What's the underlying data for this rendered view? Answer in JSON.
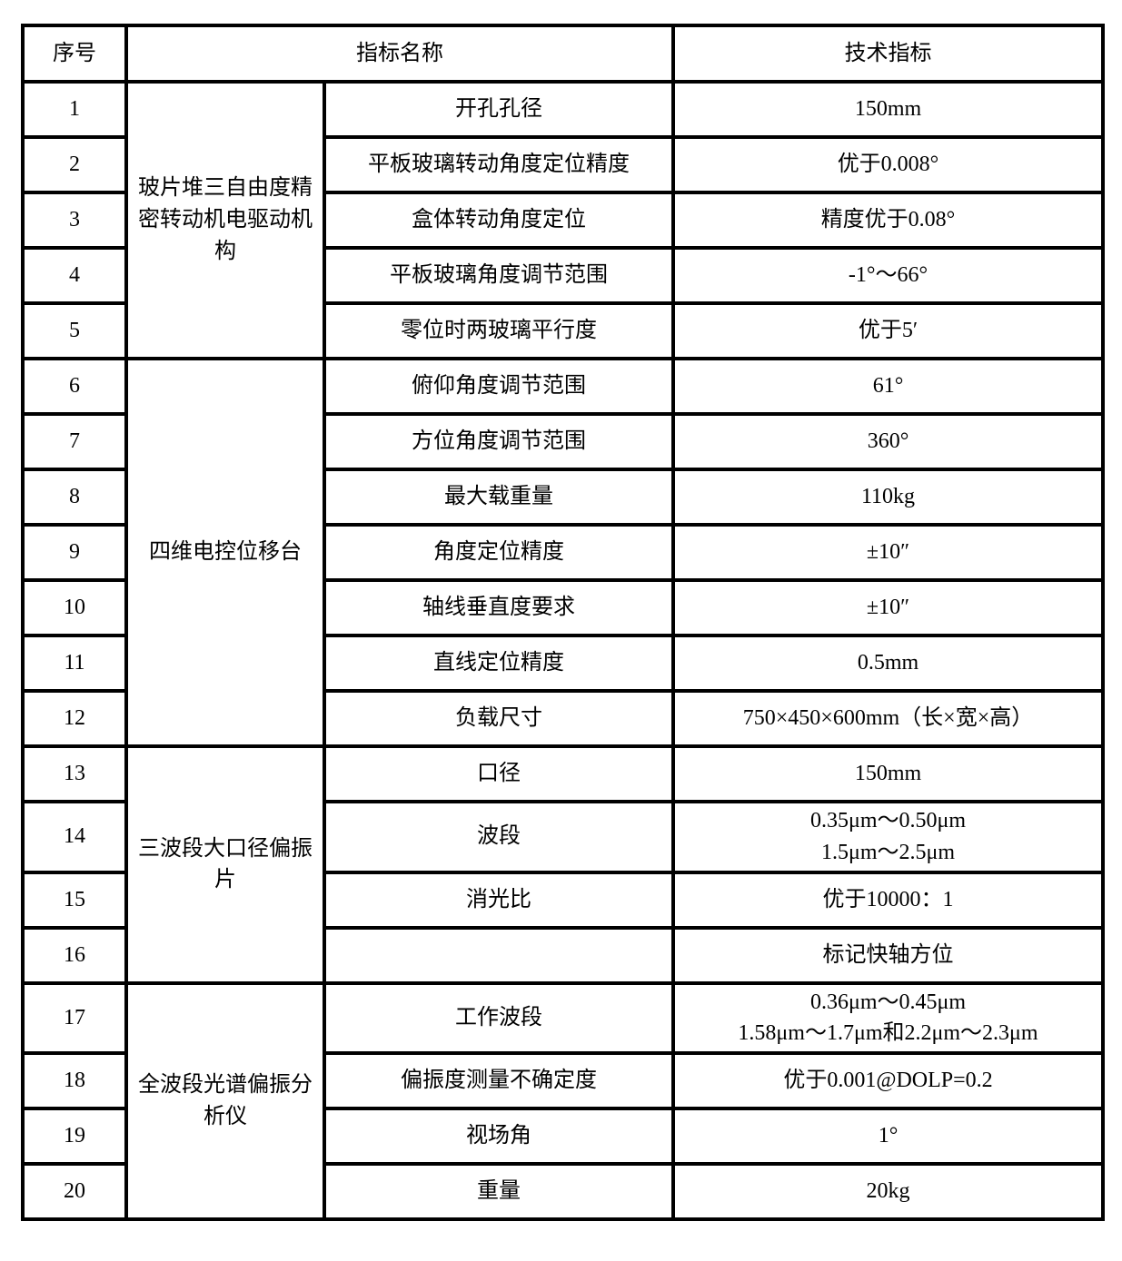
{
  "header": {
    "col_no": "序号",
    "col_name": "指标名称",
    "col_spec": "技术指标"
  },
  "groups": [
    {
      "label": "玻片堆三自由度精密转动机电驱动机构",
      "rows": [
        {
          "no": "1",
          "name": "开孔孔径",
          "spec": "150mm"
        },
        {
          "no": "2",
          "name": "平板玻璃转动角度定位精度",
          "spec": "优于0.008°"
        },
        {
          "no": "3",
          "name": "盒体转动角度定位",
          "spec": "精度优于0.08°"
        },
        {
          "no": "4",
          "name": "平板玻璃角度调节范围",
          "spec": "-1°～66°"
        },
        {
          "no": "5",
          "name": "零位时两玻璃平行度",
          "spec": "优于5′"
        }
      ]
    },
    {
      "label": "四维电控位移台",
      "rows": [
        {
          "no": "6",
          "name": "俯仰角度调节范围",
          "spec": "61°"
        },
        {
          "no": "7",
          "name": "方位角度调节范围",
          "spec": "360°"
        },
        {
          "no": "8",
          "name": "最大载重量",
          "spec": "110kg"
        },
        {
          "no": "9",
          "name": "角度定位精度",
          "spec": "±10″"
        },
        {
          "no": "10",
          "name": "轴线垂直度要求",
          "spec": "±10″"
        },
        {
          "no": "11",
          "name": "直线定位精度",
          "spec": "0.5mm"
        },
        {
          "no": "12",
          "name": "负载尺寸",
          "spec": "750×450×600mm（长×宽×高）"
        }
      ]
    },
    {
      "label": "三波段大口径偏振片",
      "rows": [
        {
          "no": "13",
          "name": "口径",
          "spec": "150mm"
        },
        {
          "no": "14",
          "name": "波段",
          "spec": "0.35μm～0.50μm\n1.5μm～2.5μm"
        },
        {
          "no": "15",
          "name": "消光比",
          "spec": "优于10000：1"
        },
        {
          "no": "16",
          "name": "",
          "spec": "标记快轴方位"
        }
      ]
    },
    {
      "label": "全波段光谱偏振分析仪",
      "rows": [
        {
          "no": "17",
          "name": "工作波段",
          "spec": "0.36μm～0.45μm\n1.58μm～1.7μm和2.2μm～2.3μm"
        },
        {
          "no": "18",
          "name": "偏振度测量不确定度",
          "spec": "优于0.001@DOLP=0.2"
        },
        {
          "no": "19",
          "name": "视场角",
          "spec": "1°"
        },
        {
          "no": "20",
          "name": "重量",
          "spec": "20kg"
        }
      ]
    }
  ],
  "layout_colors": {
    "border": "#000000",
    "background": "#ffffff",
    "text": "#000000"
  }
}
